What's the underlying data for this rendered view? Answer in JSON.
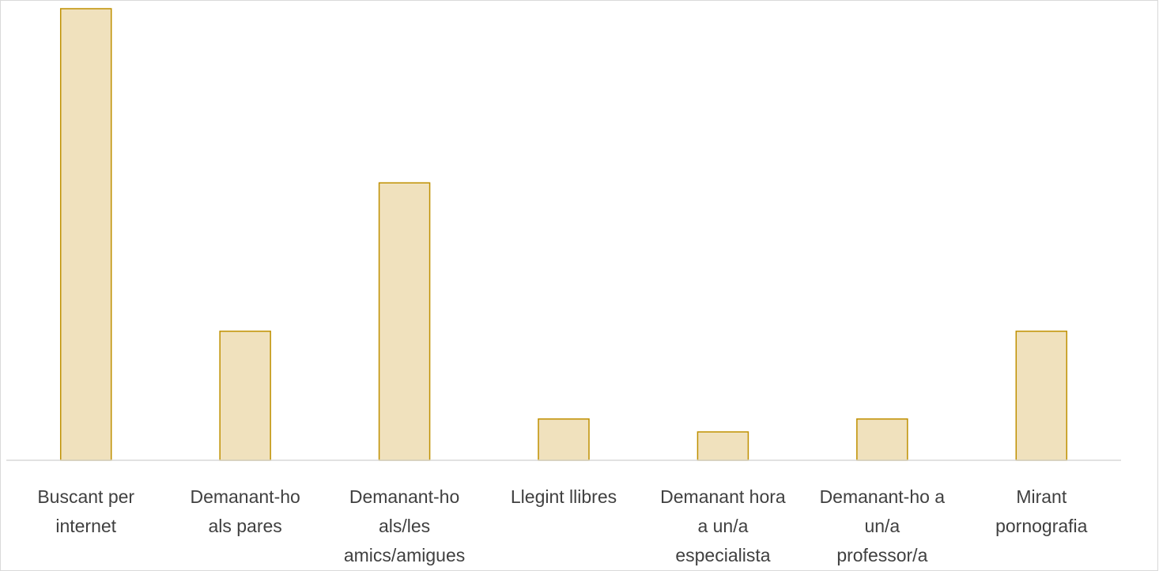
{
  "chart_data": {
    "type": "bar",
    "categories": [
      "Buscant per internet",
      "Demanant-ho als pares",
      "Demanant-ho als/les amics/amigues",
      "Llegint llibres",
      "Demanant hora a un/a especialista",
      "Demanant-ho a un/a professor/a",
      "Mirant pornografia"
    ],
    "values": [
      35,
      10,
      21.5,
      3.2,
      2.2,
      3.2,
      10
    ],
    "color": "#f0e1bd",
    "edge_color": "#bf9000",
    "ylim": [
      0,
      35
    ]
  }
}
